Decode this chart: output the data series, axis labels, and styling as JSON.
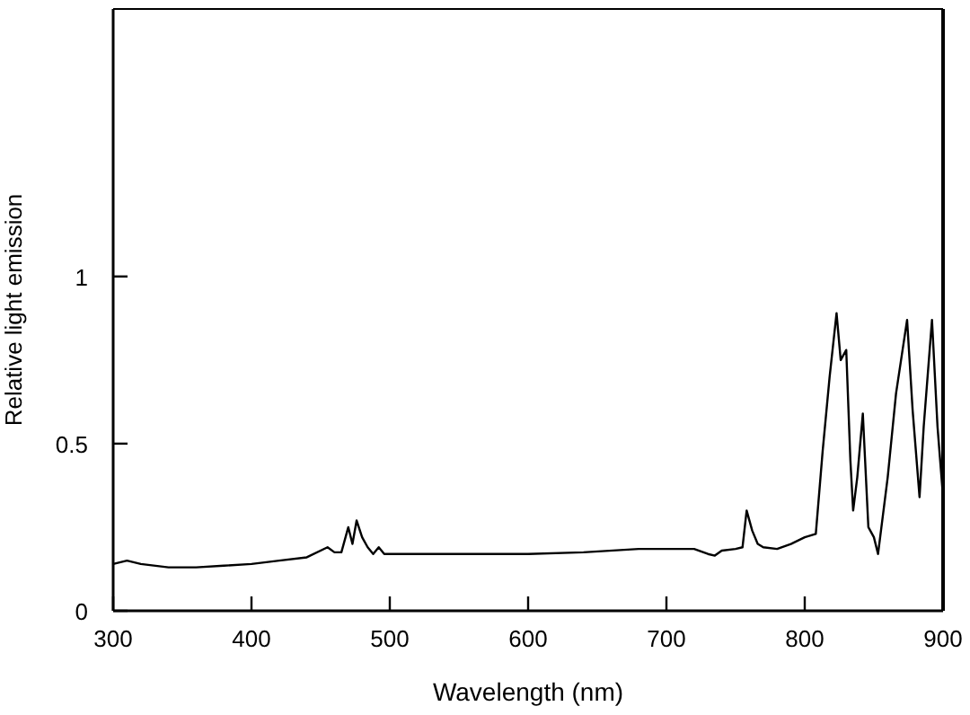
{
  "chart_data": {
    "type": "line",
    "xlabel": "Wavelength (nm)",
    "ylabel": "Relative light emission",
    "xlim": [
      300,
      900
    ],
    "ylim": [
      0,
      1.8
    ],
    "xticks": [
      300,
      400,
      500,
      600,
      700,
      800,
      900
    ],
    "yticks": [
      0,
      0.5,
      1
    ],
    "x": [
      300,
      310,
      320,
      340,
      360,
      380,
      400,
      420,
      440,
      455,
      460,
      465,
      470,
      473,
      476,
      480,
      484,
      488,
      492,
      496,
      500,
      550,
      600,
      640,
      680,
      720,
      730,
      735,
      740,
      750,
      755,
      758,
      762,
      766,
      770,
      780,
      790,
      800,
      808,
      813,
      818,
      823,
      826,
      830,
      833,
      835,
      838,
      842,
      846,
      850,
      853,
      860,
      866,
      874,
      878,
      883,
      886,
      892,
      896,
      900
    ],
    "values": [
      0.14,
      0.15,
      0.14,
      0.13,
      0.13,
      0.135,
      0.14,
      0.15,
      0.16,
      0.19,
      0.175,
      0.175,
      0.25,
      0.2,
      0.27,
      0.22,
      0.19,
      0.17,
      0.19,
      0.17,
      0.17,
      0.17,
      0.17,
      0.175,
      0.185,
      0.185,
      0.17,
      0.165,
      0.18,
      0.185,
      0.19,
      0.3,
      0.24,
      0.2,
      0.19,
      0.185,
      0.2,
      0.22,
      0.23,
      0.48,
      0.7,
      0.89,
      0.75,
      0.78,
      0.45,
      0.3,
      0.4,
      0.59,
      0.25,
      0.22,
      0.17,
      0.4,
      0.65,
      0.87,
      0.6,
      0.34,
      0.55,
      0.87,
      0.55,
      0.34
    ],
    "color": "#000000"
  }
}
